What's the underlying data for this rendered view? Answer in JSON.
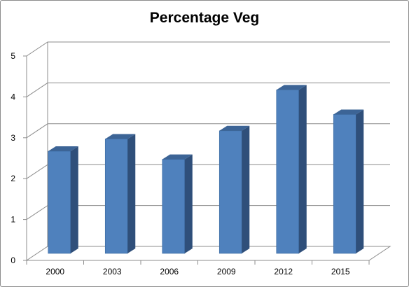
{
  "chart_data": {
    "type": "bar",
    "title": "Percentage Veg",
    "categories": [
      "2000",
      "2003",
      "2006",
      "2009",
      "2012",
      "2015"
    ],
    "values": [
      2.5,
      2.8,
      2.3,
      3.0,
      4.0,
      3.4
    ],
    "ylim": [
      0,
      5
    ],
    "yticks": [
      "0",
      "1",
      "2",
      "3",
      "4",
      "5"
    ],
    "grid": true,
    "legend": false,
    "colors": {
      "bar_front": "#4f81bd",
      "bar_side": "#2f4f7a",
      "bar_top": "#3c6496"
    }
  }
}
